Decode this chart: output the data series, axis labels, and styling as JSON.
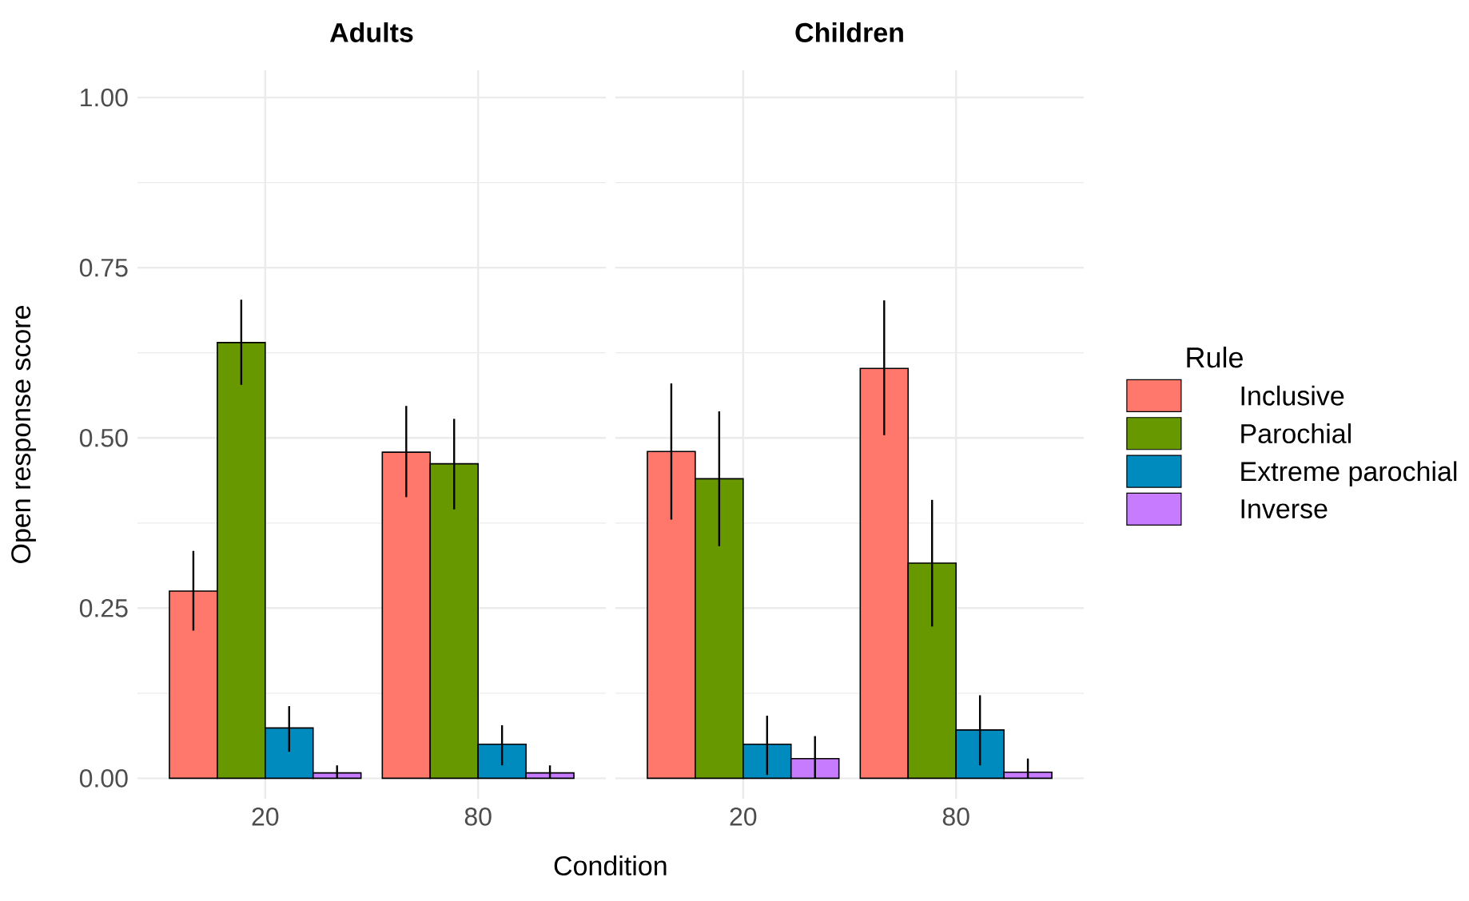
{
  "chart_data": [
    {
      "type": "bar",
      "title": "Adults",
      "xlabel": "Condition",
      "ylabel": "Open response score",
      "categories": [
        "20",
        "80"
      ],
      "series": [
        {
          "color": "#ff786b",
          "values": [
            0.275,
            0.479
          ],
          "errors": [
            [
              0.217,
              0.334
            ],
            [
              0.413,
              0.547
            ]
          ]
        },
        {
          "color": "#679800",
          "values": [
            0.64,
            0.462
          ],
          "errors": [
            [
              0.578,
              0.703
            ],
            [
              0.395,
              0.528
            ]
          ]
        },
        {
          "color": "#008bbe",
          "values": [
            0.074,
            0.05
          ],
          "errors": [
            [
              0.039,
              0.106
            ],
            [
              0.019,
              0.078
            ]
          ]
        },
        {
          "color": "#c77cff",
          "values": [
            0.008,
            0.008
          ],
          "errors": [
            [
              0,
              0.019
            ],
            [
              0,
              0.019
            ]
          ]
        }
      ],
      "ylim": [
        -0.03,
        1.04
      ],
      "yticks": [
        {
          "value": 0,
          "label": "0.00"
        },
        {
          "value": 0.25,
          "label": "0.25"
        },
        {
          "value": 0.5,
          "label": "0.50"
        },
        {
          "value": 0.75,
          "label": "0.75"
        },
        {
          "value": 1,
          "label": "1.00"
        }
      ],
      "grid": true
    },
    {
      "type": "bar",
      "title": "Children",
      "legend_title": "Rule",
      "categories": [
        "20",
        "80"
      ],
      "series": [
        {
          "name": "Inclusive",
          "color": "#ff786b",
          "values": [
            0.48,
            0.602
          ],
          "errors": [
            [
              0.38,
              0.58
            ],
            [
              0.504,
              0.702
            ]
          ]
        },
        {
          "name": "Parochial",
          "color": "#679800",
          "values": [
            0.44,
            0.316
          ],
          "errors": [
            [
              0.341,
              0.539
            ],
            [
              0.223,
              0.409
            ]
          ]
        },
        {
          "name": "Extreme parochial",
          "color": "#008bbe",
          "values": [
            0.05,
            0.071
          ],
          "errors": [
            [
              0.005,
              0.092
            ],
            [
              0.019,
              0.122
            ]
          ]
        },
        {
          "name": "Inverse",
          "color": "#c77cff",
          "values": [
            0.029,
            0.009
          ],
          "errors": [
            [
              0,
              0.062
            ],
            [
              0,
              0.029
            ]
          ]
        }
      ],
      "ylim": [
        -0.03,
        1.04
      ],
      "yticks": [
        0,
        0.25,
        0.5,
        0.75,
        1
      ],
      "grid": true,
      "tick_labels": "x",
      "legend": "right"
    }
  ]
}
